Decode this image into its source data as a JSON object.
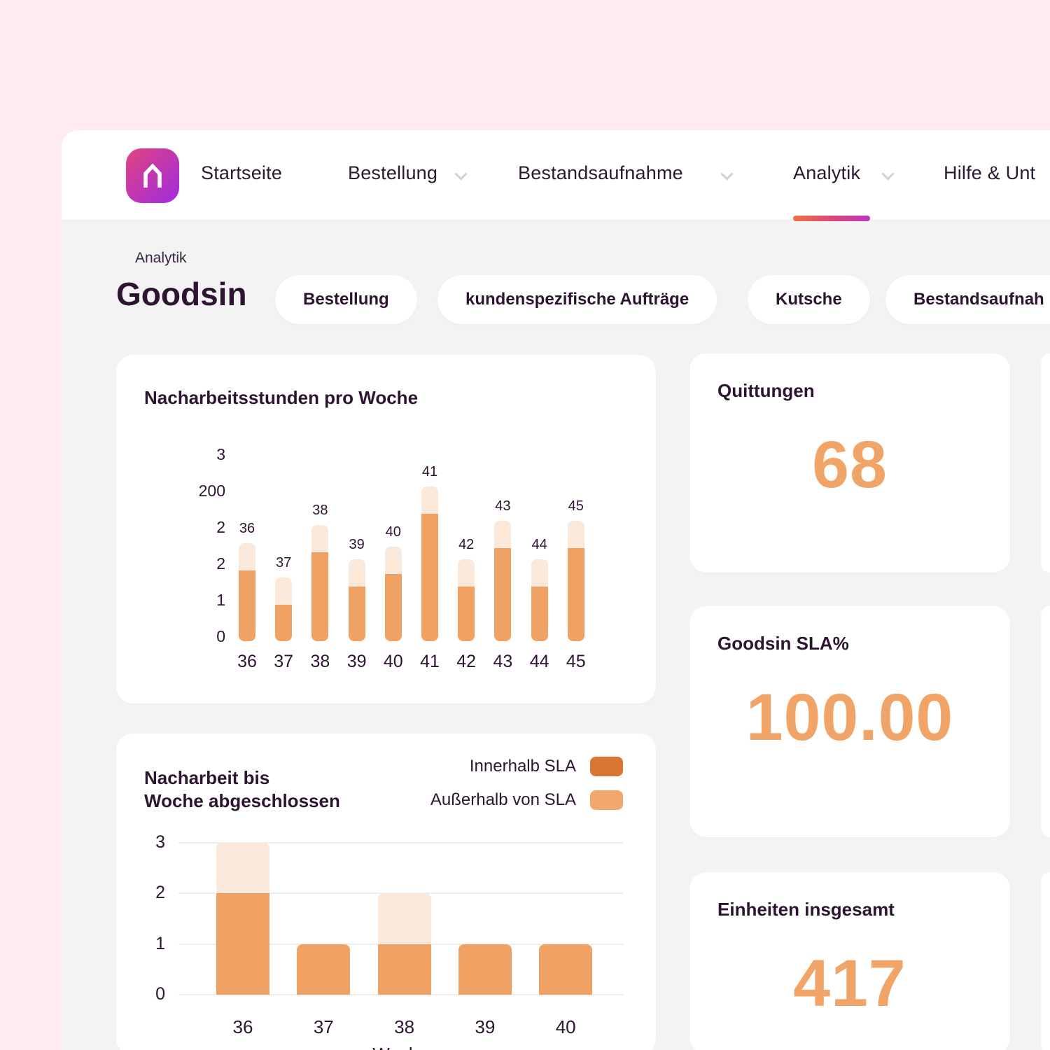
{
  "nav": {
    "items": [
      {
        "label": "Startseite",
        "has_dropdown": false,
        "active": false
      },
      {
        "label": "Bestellung",
        "has_dropdown": true,
        "active": false
      },
      {
        "label": "Bestandsaufnahme",
        "has_dropdown": true,
        "active": false
      },
      {
        "label": "Analytik",
        "has_dropdown": true,
        "active": true
      },
      {
        "label": "Hilfe & Unt",
        "has_dropdown": false,
        "active": false
      }
    ]
  },
  "breadcrumb": "Analytik",
  "page_title": "Goodsin",
  "filter_pills": [
    "Bestellung",
    "kundenspezifische Aufträge",
    "Kutsche",
    "Bestandsaufnah"
  ],
  "stats": [
    {
      "title": "Quittungen",
      "value": "68"
    },
    {
      "title": "Goodsin SLA%",
      "value": "100.00"
    },
    {
      "title": "Einheiten insgesamt",
      "value": "417"
    }
  ],
  "colors": {
    "page_background": "#ffeaf1",
    "content_background": "#f4f3f4",
    "accent_orange": "#f0a467",
    "bar_orange": "#f0a164",
    "bar_light": "#fae8da",
    "legend_within_sla": "#da7532",
    "legend_outside_sla": "#f2a76d",
    "text_dark": "#2d1430",
    "brand_gradient_start": "#e0447f",
    "brand_gradient_end": "#a02be0"
  },
  "icons": [
    "home-icon",
    "chevron-down-icon"
  ],
  "chart_data": [
    {
      "type": "bar",
      "stacked": true,
      "title": "Nacharbeitsstunden pro Woche",
      "categories": [
        "36",
        "37",
        "38",
        "39",
        "40",
        "41",
        "42",
        "43",
        "44",
        "45"
      ],
      "bar_top_labels": [
        "36",
        "37",
        "38",
        "39",
        "40",
        "41",
        "42",
        "43",
        "44",
        "45"
      ],
      "y_tick_labels_top_to_bottom": [
        "3",
        "200",
        "2",
        "2",
        "1",
        "0"
      ],
      "ylim_ticks": [
        0,
        5
      ],
      "grid": false,
      "series": [
        {
          "name": "Innerhalb SLA",
          "color": "#f0a164",
          "values": [
            1.95,
            1.0,
            2.45,
            1.5,
            1.85,
            3.5,
            1.5,
            2.55,
            1.5,
            2.55
          ]
        },
        {
          "name": "Außerhalb von SLA",
          "color": "#fae8da",
          "values": [
            0.75,
            0.75,
            0.75,
            0.75,
            0.75,
            0.75,
            0.75,
            0.75,
            0.75,
            0.75
          ]
        }
      ]
    },
    {
      "type": "bar",
      "stacked": true,
      "title": "Nacharbeit bis Woche abgeschlossen",
      "title_lines": [
        "Nacharbeit bis",
        "Woche abgeschlossen"
      ],
      "categories": [
        "36",
        "37",
        "38",
        "39",
        "40"
      ],
      "xlabel": "Woche",
      "y_ticks": [
        3,
        2,
        1,
        0
      ],
      "ylim": [
        0,
        3
      ],
      "grid": true,
      "legend_position": "top-right",
      "legend": [
        {
          "label": "Innerhalb SLA",
          "color": "#da7532"
        },
        {
          "label": "Außerhalb von SLA",
          "color": "#f2a76d"
        }
      ],
      "series": [
        {
          "name": "Innerhalb SLA",
          "color": "#f0a164",
          "values": [
            2,
            1,
            1,
            1,
            1
          ]
        },
        {
          "name": "Außerhalb von SLA",
          "color": "#fae8da",
          "values": [
            1,
            0,
            1,
            0,
            0
          ]
        }
      ]
    }
  ]
}
